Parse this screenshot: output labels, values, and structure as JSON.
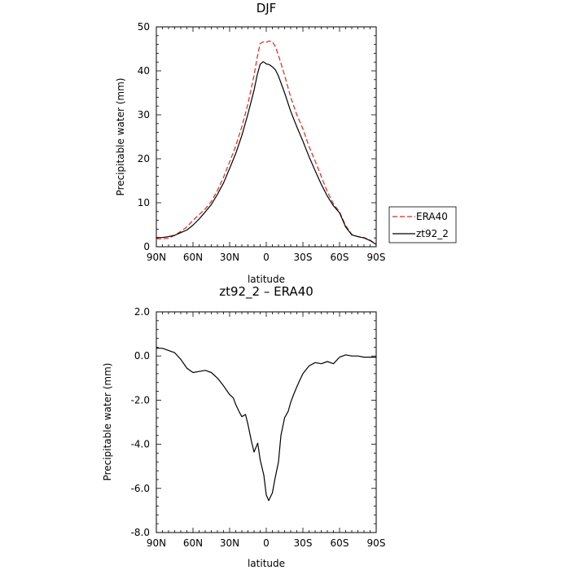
{
  "chart_data": [
    {
      "type": "line",
      "title": "DJF",
      "xlabel": "latitude",
      "ylabel": "Precipitable water (mm)",
      "xlim": [
        90,
        -90
      ],
      "ylim": [
        0,
        50
      ],
      "x_ticks": [
        90,
        60,
        30,
        0,
        -30,
        -60,
        -90
      ],
      "x_tick_labels": [
        "90N",
        "60N",
        "30N",
        "0",
        "30S",
        "60S",
        "90S"
      ],
      "y_ticks": [
        0,
        10,
        20,
        30,
        40,
        50
      ],
      "y_tick_labels": [
        "0",
        "10",
        "20",
        "30",
        "40",
        "50"
      ],
      "legend": {
        "placement": "right",
        "entries": [
          "ERA40",
          "zt92_2"
        ]
      },
      "series": [
        {
          "name": "ERA40",
          "color": "#e8221c",
          "dash": "dashed",
          "x": [
            90,
            85,
            80,
            75,
            70,
            65,
            60,
            55,
            50,
            45,
            40,
            35,
            30,
            25,
            20,
            15,
            10,
            7.5,
            5,
            2.5,
            0,
            -2.5,
            -5,
            -7.5,
            -10,
            -15,
            -20,
            -25,
            -30,
            -35,
            -40,
            -45,
            -50,
            -55,
            -60,
            -65,
            -70,
            -75,
            -80,
            -85,
            -90
          ],
          "y": [
            1.8,
            1.8,
            1.9,
            2.6,
            3.5,
            4.5,
            6.0,
            7.3,
            8.6,
            10.3,
            12.8,
            15.8,
            19.3,
            22.9,
            27.3,
            32.5,
            39.0,
            43.0,
            46.2,
            46.6,
            46.5,
            46.8,
            46.6,
            45.5,
            43.5,
            39.0,
            34.0,
            30.0,
            26.8,
            22.8,
            19.5,
            16.0,
            12.5,
            9.7,
            7.9,
            4.8,
            2.8,
            2.3,
            2.1,
            1.5,
            0.5
          ]
        },
        {
          "name": "zt92_2",
          "color": "#000000",
          "dash": "solid",
          "x": [
            90,
            85,
            80,
            75,
            70,
            65,
            60,
            55,
            50,
            45,
            40,
            35,
            30,
            25,
            20,
            15,
            10,
            7.5,
            5,
            2.5,
            0,
            -2.5,
            -5,
            -7.5,
            -10,
            -15,
            -20,
            -25,
            -30,
            -35,
            -40,
            -45,
            -50,
            -55,
            -60,
            -65,
            -70,
            -75,
            -80,
            -85,
            -90
          ],
          "y": [
            2.1,
            2.1,
            2.3,
            2.6,
            3.2,
            3.8,
            4.9,
            6.3,
            7.9,
            9.6,
            11.9,
            14.5,
            17.8,
            21.2,
            25.3,
            30.2,
            35.6,
            39.0,
            41.5,
            42.1,
            41.6,
            41.4,
            40.9,
            40.2,
            38.8,
            35.0,
            30.8,
            27.3,
            24.0,
            20.5,
            17.3,
            14.2,
            11.5,
            9.3,
            7.7,
            4.5,
            2.7,
            2.3,
            2.0,
            1.4,
            0.5
          ]
        }
      ]
    },
    {
      "type": "line",
      "title": "zt92_2 – ERA40",
      "xlabel": "latitude",
      "ylabel": "Precipitable water (mm)",
      "xlim": [
        90,
        -90
      ],
      "ylim": [
        -8,
        2
      ],
      "x_ticks": [
        90,
        60,
        30,
        0,
        -30,
        -60,
        -90
      ],
      "x_tick_labels": [
        "90N",
        "60N",
        "30N",
        "0",
        "30S",
        "60S",
        "90S"
      ],
      "y_ticks": [
        2,
        0,
        -2,
        -4,
        -6,
        -8
      ],
      "y_tick_labels": [
        "2.0",
        "0.0",
        "-2.0",
        "-4.0",
        "-6.0",
        "-8.0"
      ],
      "series": [
        {
          "color": "#000000",
          "dash": "solid",
          "x": [
            90,
            85,
            80,
            75,
            70,
            65,
            60,
            55,
            50,
            45,
            40,
            35,
            30,
            27,
            25,
            22,
            20,
            17,
            15,
            12,
            10,
            7,
            5,
            2,
            0,
            -2,
            -5,
            -7,
            -10,
            -12,
            -15,
            -18,
            -20,
            -22,
            -25,
            -27,
            -30,
            -35,
            -40,
            -45,
            -50,
            -55,
            -60,
            -65,
            -70,
            -75,
            -80,
            -85,
            -90
          ],
          "y": [
            0.35,
            0.35,
            0.25,
            0.15,
            -0.15,
            -0.55,
            -0.75,
            -0.7,
            -0.65,
            -0.75,
            -1.0,
            -1.35,
            -1.75,
            -1.9,
            -2.2,
            -2.55,
            -2.75,
            -2.65,
            -3.1,
            -3.9,
            -4.35,
            -3.95,
            -4.7,
            -5.4,
            -6.3,
            -6.55,
            -6.2,
            -5.6,
            -4.8,
            -3.6,
            -2.8,
            -2.5,
            -2.1,
            -1.8,
            -1.4,
            -1.15,
            -0.8,
            -0.45,
            -0.3,
            -0.35,
            -0.25,
            -0.35,
            -0.05,
            0.05,
            0.0,
            0.0,
            -0.05,
            -0.05,
            -0.05
          ]
        }
      ]
    }
  ]
}
